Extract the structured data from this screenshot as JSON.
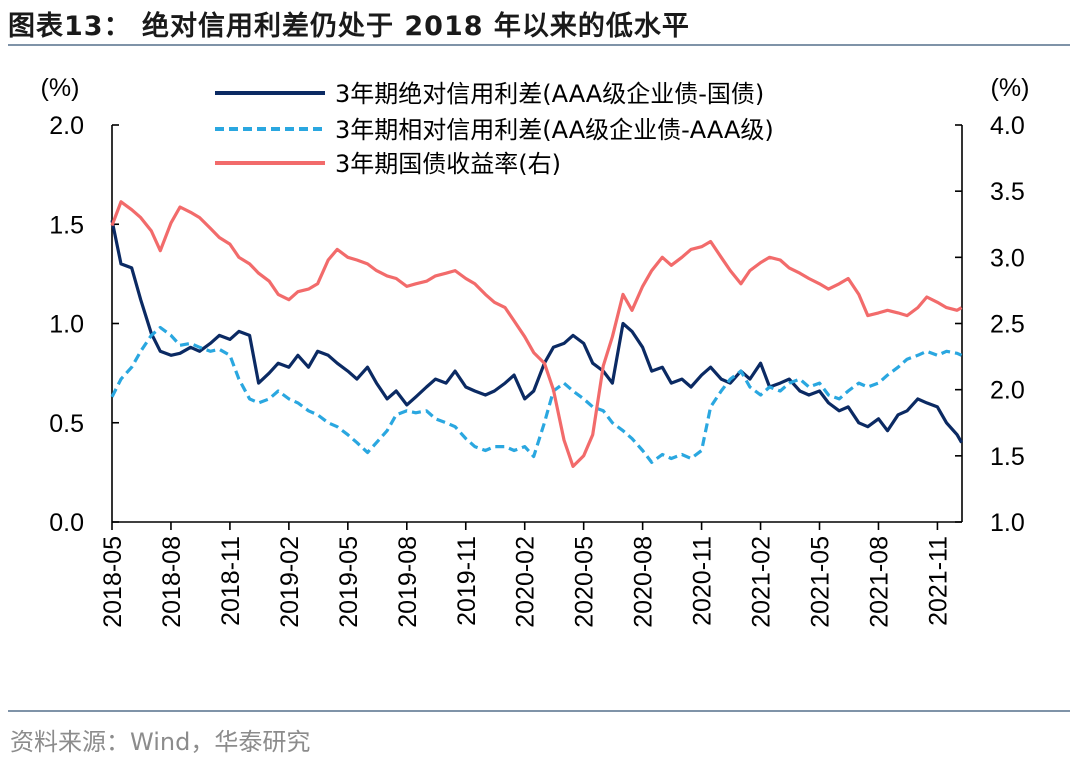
{
  "header": {
    "title": "图表13：  绝对信用利差仍处于 2018 年以来的低水平"
  },
  "footer": {
    "source": "资料来源：Wind，华泰研究"
  },
  "colors": {
    "abs_spread": "#0b2a63",
    "rel_spread": "#2aa7e0",
    "yield": "#f26b6b",
    "rule": "#7f93a8"
  },
  "chart_data": {
    "type": "line",
    "title": "",
    "y_left_unit": "(%)",
    "y_right_unit": "(%)",
    "ylim_left": [
      0.0,
      2.0
    ],
    "ylim_right": [
      1.0,
      4.0
    ],
    "yticks_left": [
      "0.0",
      "0.5",
      "1.0",
      "1.5",
      "2.0"
    ],
    "yticks_right": [
      "1.0",
      "1.5",
      "2.0",
      "2.5",
      "3.0",
      "3.5",
      "4.0"
    ],
    "x_range": [
      "2018-05",
      "2021-12"
    ],
    "xticks": [
      "2018-05",
      "2018-08",
      "2018-11",
      "2019-02",
      "2019-05",
      "2019-08",
      "2019-11",
      "2020-02",
      "2020-05",
      "2020-08",
      "2020-11",
      "2021-02",
      "2021-05",
      "2021-08",
      "2021-11"
    ],
    "grid": false,
    "legend_position": "top-center",
    "series": [
      {
        "name": "3年期绝对信用利差(AAA级企业债-国债)",
        "axis": "left",
        "style": "solid",
        "color": "#0b2a63",
        "points": [
          [
            "2018-05-01",
            1.52
          ],
          [
            "2018-05-15",
            1.3
          ],
          [
            "2018-06-01",
            1.28
          ],
          [
            "2018-06-15",
            1.12
          ],
          [
            "2018-07-01",
            0.95
          ],
          [
            "2018-07-15",
            0.86
          ],
          [
            "2018-08-01",
            0.84
          ],
          [
            "2018-08-15",
            0.85
          ],
          [
            "2018-09-01",
            0.88
          ],
          [
            "2018-09-15",
            0.86
          ],
          [
            "2018-10-01",
            0.9
          ],
          [
            "2018-10-15",
            0.94
          ],
          [
            "2018-11-01",
            0.92
          ],
          [
            "2018-11-15",
            0.96
          ],
          [
            "2018-12-01",
            0.94
          ],
          [
            "2018-12-15",
            0.7
          ],
          [
            "2019-01-01",
            0.75
          ],
          [
            "2019-01-15",
            0.8
          ],
          [
            "2019-02-01",
            0.78
          ],
          [
            "2019-02-15",
            0.84
          ],
          [
            "2019-03-01",
            0.78
          ],
          [
            "2019-03-15",
            0.86
          ],
          [
            "2019-04-01",
            0.84
          ],
          [
            "2019-04-15",
            0.8
          ],
          [
            "2019-05-01",
            0.76
          ],
          [
            "2019-05-15",
            0.72
          ],
          [
            "2019-06-01",
            0.78
          ],
          [
            "2019-06-15",
            0.7
          ],
          [
            "2019-07-01",
            0.62
          ],
          [
            "2019-07-15",
            0.66
          ],
          [
            "2019-08-01",
            0.59
          ],
          [
            "2019-08-15",
            0.63
          ],
          [
            "2019-09-01",
            0.68
          ],
          [
            "2019-09-15",
            0.72
          ],
          [
            "2019-10-01",
            0.7
          ],
          [
            "2019-10-15",
            0.76
          ],
          [
            "2019-11-01",
            0.68
          ],
          [
            "2019-11-15",
            0.66
          ],
          [
            "2019-12-01",
            0.64
          ],
          [
            "2019-12-15",
            0.66
          ],
          [
            "2020-01-01",
            0.7
          ],
          [
            "2020-01-15",
            0.74
          ],
          [
            "2020-02-01",
            0.62
          ],
          [
            "2020-02-15",
            0.66
          ],
          [
            "2020-03-01",
            0.8
          ],
          [
            "2020-03-15",
            0.88
          ],
          [
            "2020-04-01",
            0.9
          ],
          [
            "2020-04-15",
            0.94
          ],
          [
            "2020-05-01",
            0.9
          ],
          [
            "2020-05-15",
            0.8
          ],
          [
            "2020-06-01",
            0.76
          ],
          [
            "2020-06-15",
            0.7
          ],
          [
            "2020-07-01",
            1.0
          ],
          [
            "2020-07-15",
            0.96
          ],
          [
            "2020-08-01",
            0.88
          ],
          [
            "2020-08-15",
            0.76
          ],
          [
            "2020-09-01",
            0.78
          ],
          [
            "2020-09-15",
            0.7
          ],
          [
            "2020-10-01",
            0.72
          ],
          [
            "2020-10-15",
            0.68
          ],
          [
            "2020-11-01",
            0.74
          ],
          [
            "2020-11-15",
            0.78
          ],
          [
            "2020-12-01",
            0.72
          ],
          [
            "2020-12-15",
            0.7
          ],
          [
            "2021-01-01",
            0.76
          ],
          [
            "2021-01-15",
            0.72
          ],
          [
            "2021-02-01",
            0.8
          ],
          [
            "2021-02-15",
            0.68
          ],
          [
            "2021-03-01",
            0.7
          ],
          [
            "2021-03-15",
            0.72
          ],
          [
            "2021-04-01",
            0.66
          ],
          [
            "2021-04-15",
            0.64
          ],
          [
            "2021-05-01",
            0.66
          ],
          [
            "2021-05-15",
            0.6
          ],
          [
            "2021-06-01",
            0.56
          ],
          [
            "2021-06-15",
            0.58
          ],
          [
            "2021-07-01",
            0.5
          ],
          [
            "2021-07-15",
            0.48
          ],
          [
            "2021-08-01",
            0.52
          ],
          [
            "2021-08-15",
            0.46
          ],
          [
            "2021-09-01",
            0.54
          ],
          [
            "2021-09-15",
            0.56
          ],
          [
            "2021-10-01",
            0.62
          ],
          [
            "2021-10-15",
            0.6
          ],
          [
            "2021-11-01",
            0.58
          ],
          [
            "2021-11-15",
            0.5
          ],
          [
            "2021-12-01",
            0.44
          ],
          [
            "2021-12-08",
            0.4
          ]
        ]
      },
      {
        "name": "3年期相对信用利差(AA级企业债-AAA级)",
        "axis": "left",
        "style": "dashed",
        "color": "#2aa7e0",
        "points": [
          [
            "2018-05-01",
            0.63
          ],
          [
            "2018-05-15",
            0.72
          ],
          [
            "2018-06-01",
            0.78
          ],
          [
            "2018-06-15",
            0.86
          ],
          [
            "2018-07-01",
            0.94
          ],
          [
            "2018-07-15",
            0.98
          ],
          [
            "2018-08-01",
            0.94
          ],
          [
            "2018-08-15",
            0.89
          ],
          [
            "2018-09-01",
            0.9
          ],
          [
            "2018-09-15",
            0.88
          ],
          [
            "2018-10-01",
            0.86
          ],
          [
            "2018-10-15",
            0.87
          ],
          [
            "2018-11-01",
            0.84
          ],
          [
            "2018-11-15",
            0.72
          ],
          [
            "2018-12-01",
            0.62
          ],
          [
            "2018-12-15",
            0.6
          ],
          [
            "2019-01-01",
            0.62
          ],
          [
            "2019-01-15",
            0.66
          ],
          [
            "2019-02-01",
            0.62
          ],
          [
            "2019-02-15",
            0.6
          ],
          [
            "2019-03-01",
            0.56
          ],
          [
            "2019-03-15",
            0.54
          ],
          [
            "2019-04-01",
            0.5
          ],
          [
            "2019-04-15",
            0.48
          ],
          [
            "2019-05-01",
            0.44
          ],
          [
            "2019-05-15",
            0.4
          ],
          [
            "2019-06-01",
            0.35
          ],
          [
            "2019-06-15",
            0.4
          ],
          [
            "2019-07-01",
            0.46
          ],
          [
            "2019-07-15",
            0.54
          ],
          [
            "2019-08-01",
            0.56
          ],
          [
            "2019-08-15",
            0.55
          ],
          [
            "2019-09-01",
            0.56
          ],
          [
            "2019-09-15",
            0.52
          ],
          [
            "2019-10-01",
            0.5
          ],
          [
            "2019-10-15",
            0.48
          ],
          [
            "2019-11-01",
            0.42
          ],
          [
            "2019-11-15",
            0.38
          ],
          [
            "2019-12-01",
            0.36
          ],
          [
            "2019-12-15",
            0.38
          ],
          [
            "2020-01-01",
            0.38
          ],
          [
            "2020-01-15",
            0.36
          ],
          [
            "2020-02-01",
            0.38
          ],
          [
            "2020-02-15",
            0.33
          ],
          [
            "2020-03-01",
            0.5
          ],
          [
            "2020-03-15",
            0.66
          ],
          [
            "2020-04-01",
            0.7
          ],
          [
            "2020-04-15",
            0.66
          ],
          [
            "2020-05-01",
            0.62
          ],
          [
            "2020-05-15",
            0.58
          ],
          [
            "2020-06-01",
            0.56
          ],
          [
            "2020-06-15",
            0.5
          ],
          [
            "2020-07-01",
            0.46
          ],
          [
            "2020-07-15",
            0.42
          ],
          [
            "2020-08-01",
            0.36
          ],
          [
            "2020-08-15",
            0.3
          ],
          [
            "2020-09-01",
            0.34
          ],
          [
            "2020-09-15",
            0.32
          ],
          [
            "2020-10-01",
            0.34
          ],
          [
            "2020-10-15",
            0.32
          ],
          [
            "2020-11-01",
            0.36
          ],
          [
            "2020-11-15",
            0.58
          ],
          [
            "2020-12-01",
            0.66
          ],
          [
            "2020-12-15",
            0.72
          ],
          [
            "2021-01-01",
            0.76
          ],
          [
            "2021-01-15",
            0.68
          ],
          [
            "2021-02-01",
            0.64
          ],
          [
            "2021-02-15",
            0.68
          ],
          [
            "2021-03-01",
            0.66
          ],
          [
            "2021-03-15",
            0.7
          ],
          [
            "2021-04-01",
            0.72
          ],
          [
            "2021-04-15",
            0.68
          ],
          [
            "2021-05-01",
            0.7
          ],
          [
            "2021-05-15",
            0.64
          ],
          [
            "2021-06-01",
            0.62
          ],
          [
            "2021-06-15",
            0.66
          ],
          [
            "2021-07-01",
            0.7
          ],
          [
            "2021-07-15",
            0.68
          ],
          [
            "2021-08-01",
            0.7
          ],
          [
            "2021-08-15",
            0.74
          ],
          [
            "2021-09-01",
            0.78
          ],
          [
            "2021-09-15",
            0.82
          ],
          [
            "2021-10-01",
            0.84
          ],
          [
            "2021-10-15",
            0.86
          ],
          [
            "2021-11-01",
            0.84
          ],
          [
            "2021-11-15",
            0.86
          ],
          [
            "2021-12-01",
            0.85
          ],
          [
            "2021-12-08",
            0.84
          ]
        ]
      },
      {
        "name": "3年期国债收益率(右)",
        "axis": "right",
        "style": "solid",
        "color": "#f26b6b",
        "points": [
          [
            "2018-05-01",
            3.24
          ],
          [
            "2018-05-15",
            3.42
          ],
          [
            "2018-06-01",
            3.36
          ],
          [
            "2018-06-15",
            3.3
          ],
          [
            "2018-07-01",
            3.2
          ],
          [
            "2018-07-15",
            3.05
          ],
          [
            "2018-08-01",
            3.26
          ],
          [
            "2018-08-15",
            3.38
          ],
          [
            "2018-09-01",
            3.34
          ],
          [
            "2018-09-15",
            3.3
          ],
          [
            "2018-10-01",
            3.22
          ],
          [
            "2018-10-15",
            3.15
          ],
          [
            "2018-11-01",
            3.1
          ],
          [
            "2018-11-15",
            3.0
          ],
          [
            "2018-12-01",
            2.95
          ],
          [
            "2018-12-15",
            2.88
          ],
          [
            "2019-01-01",
            2.82
          ],
          [
            "2019-01-15",
            2.72
          ],
          [
            "2019-02-01",
            2.68
          ],
          [
            "2019-02-15",
            2.74
          ],
          [
            "2019-03-01",
            2.76
          ],
          [
            "2019-03-15",
            2.8
          ],
          [
            "2019-04-01",
            2.98
          ],
          [
            "2019-04-15",
            3.06
          ],
          [
            "2019-05-01",
            3.0
          ],
          [
            "2019-05-15",
            2.98
          ],
          [
            "2019-06-01",
            2.95
          ],
          [
            "2019-06-15",
            2.9
          ],
          [
            "2019-07-01",
            2.86
          ],
          [
            "2019-07-15",
            2.84
          ],
          [
            "2019-08-01",
            2.78
          ],
          [
            "2019-08-15",
            2.8
          ],
          [
            "2019-09-01",
            2.82
          ],
          [
            "2019-09-15",
            2.86
          ],
          [
            "2019-10-01",
            2.88
          ],
          [
            "2019-10-15",
            2.9
          ],
          [
            "2019-11-01",
            2.84
          ],
          [
            "2019-11-15",
            2.8
          ],
          [
            "2019-12-01",
            2.72
          ],
          [
            "2019-12-15",
            2.66
          ],
          [
            "2020-01-01",
            2.62
          ],
          [
            "2020-01-15",
            2.52
          ],
          [
            "2020-02-01",
            2.4
          ],
          [
            "2020-02-15",
            2.28
          ],
          [
            "2020-03-01",
            2.2
          ],
          [
            "2020-03-15",
            2.0
          ],
          [
            "2020-04-01",
            1.62
          ],
          [
            "2020-04-15",
            1.42
          ],
          [
            "2020-05-01",
            1.5
          ],
          [
            "2020-05-15",
            1.66
          ],
          [
            "2020-06-01",
            2.18
          ],
          [
            "2020-06-15",
            2.4
          ],
          [
            "2020-07-01",
            2.72
          ],
          [
            "2020-07-15",
            2.6
          ],
          [
            "2020-08-01",
            2.78
          ],
          [
            "2020-08-15",
            2.9
          ],
          [
            "2020-09-01",
            3.0
          ],
          [
            "2020-09-15",
            2.94
          ],
          [
            "2020-10-01",
            3.0
          ],
          [
            "2020-10-15",
            3.06
          ],
          [
            "2020-11-01",
            3.08
          ],
          [
            "2020-11-15",
            3.12
          ],
          [
            "2020-12-01",
            3.0
          ],
          [
            "2020-12-15",
            2.9
          ],
          [
            "2021-01-01",
            2.8
          ],
          [
            "2021-01-15",
            2.9
          ],
          [
            "2021-02-01",
            2.96
          ],
          [
            "2021-02-15",
            3.0
          ],
          [
            "2021-03-01",
            2.98
          ],
          [
            "2021-03-15",
            2.92
          ],
          [
            "2021-04-01",
            2.88
          ],
          [
            "2021-04-15",
            2.84
          ],
          [
            "2021-05-01",
            2.8
          ],
          [
            "2021-05-15",
            2.76
          ],
          [
            "2021-06-01",
            2.8
          ],
          [
            "2021-06-15",
            2.84
          ],
          [
            "2021-07-01",
            2.72
          ],
          [
            "2021-07-15",
            2.56
          ],
          [
            "2021-08-01",
            2.58
          ],
          [
            "2021-08-15",
            2.6
          ],
          [
            "2021-09-01",
            2.58
          ],
          [
            "2021-09-15",
            2.56
          ],
          [
            "2021-10-01",
            2.62
          ],
          [
            "2021-10-15",
            2.7
          ],
          [
            "2021-11-01",
            2.66
          ],
          [
            "2021-11-15",
            2.62
          ],
          [
            "2021-12-01",
            2.6
          ],
          [
            "2021-12-08",
            2.62
          ]
        ]
      }
    ]
  }
}
